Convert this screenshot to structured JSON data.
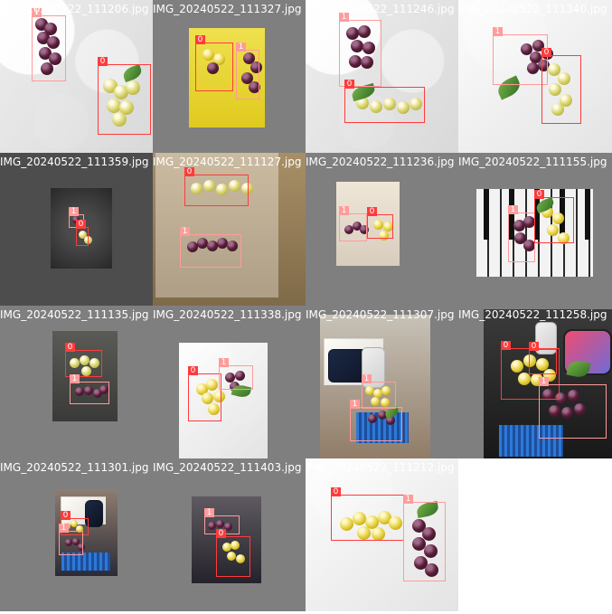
{
  "mosaic": {
    "tiles": [
      {
        "caption": "IMG_20240522_111206.jpg",
        "labels": [
          "1",
          "0"
        ]
      },
      {
        "caption": "IMG_20240522_111327.jpg",
        "labels": [
          "0",
          "1"
        ]
      },
      {
        "caption": "IMG_20240522_111246.jpg",
        "labels": [
          "1",
          "0"
        ]
      },
      {
        "caption": "IMG_20240522_111340.jpg",
        "labels": [
          "1",
          "0"
        ]
      },
      {
        "caption": "IMG_20240522_111359.jpg",
        "labels": [
          "1",
          "0"
        ]
      },
      {
        "caption": "IMG_20240522_111127.jpg",
        "labels": [
          "0",
          "1"
        ]
      },
      {
        "caption": "IMG_20240522_111236.jpg",
        "labels": [
          "1",
          "0"
        ]
      },
      {
        "caption": "IMG_20240522_111155.jpg",
        "labels": [
          "1",
          "0"
        ]
      },
      {
        "caption": "IMG_20240522_111135.jpg",
        "labels": [
          "0",
          "1"
        ]
      },
      {
        "caption": "IMG_20240522_111338.jpg",
        "labels": [
          "0",
          "1"
        ]
      },
      {
        "caption": "IMG_20240522_111307.jpg",
        "labels": [
          "1",
          "1"
        ]
      },
      {
        "caption": "IMG_20240522_111258.jpg",
        "labels": [
          "0",
          "0",
          "1"
        ]
      },
      {
        "caption": "IMG_20240522_111301.jpg",
        "labels": [
          "0",
          "1"
        ]
      },
      {
        "caption": "IMG_20240522_111403.jpg",
        "labels": [
          "1",
          "0"
        ]
      },
      {
        "caption": "IMG_20240522_111212.jpg",
        "labels": [
          "0",
          "1"
        ]
      }
    ]
  },
  "colors": {
    "page_background": "#ffffff",
    "tile_background": "#7f7f7f",
    "class_0_box": "#ff3b3b",
    "class_1_box": "#ff9b9b",
    "caption_text": "#ffffff"
  }
}
